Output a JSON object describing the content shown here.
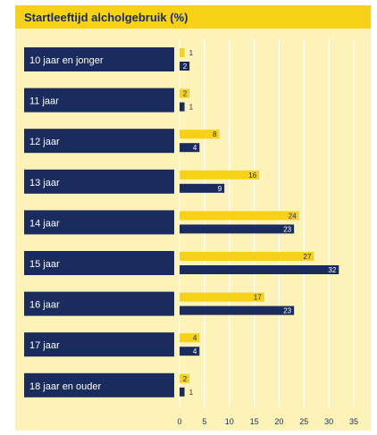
{
  "chart_data": {
    "type": "bar",
    "orientation": "horizontal",
    "title": "Startleeftijd alcholgebruik (%)",
    "categories": [
      "10 jaar en jonger",
      "11 jaar",
      "12 jaar",
      "13 jaar",
      "14 jaar",
      "15 jaar",
      "16 jaar",
      "17 jaar",
      "18 jaar en ouder"
    ],
    "series": [
      {
        "values": [
          1,
          2,
          8,
          16,
          24,
          27,
          17,
          4,
          2
        ],
        "color": "#f7d117"
      },
      {
        "values": [
          2,
          1,
          4,
          9,
          23,
          32,
          23,
          4,
          1
        ],
        "color": "#1a2b5e"
      }
    ],
    "xlim": [
      0,
      35
    ],
    "xticks": [
      0,
      5,
      10,
      15,
      20,
      25,
      30,
      35
    ],
    "grid": true,
    "legend": "none",
    "colors": {
      "background": "#fdf2b8",
      "title_band": "#f7d117",
      "category_box": "#1a2b5e",
      "grid": "#ffffff"
    }
  }
}
